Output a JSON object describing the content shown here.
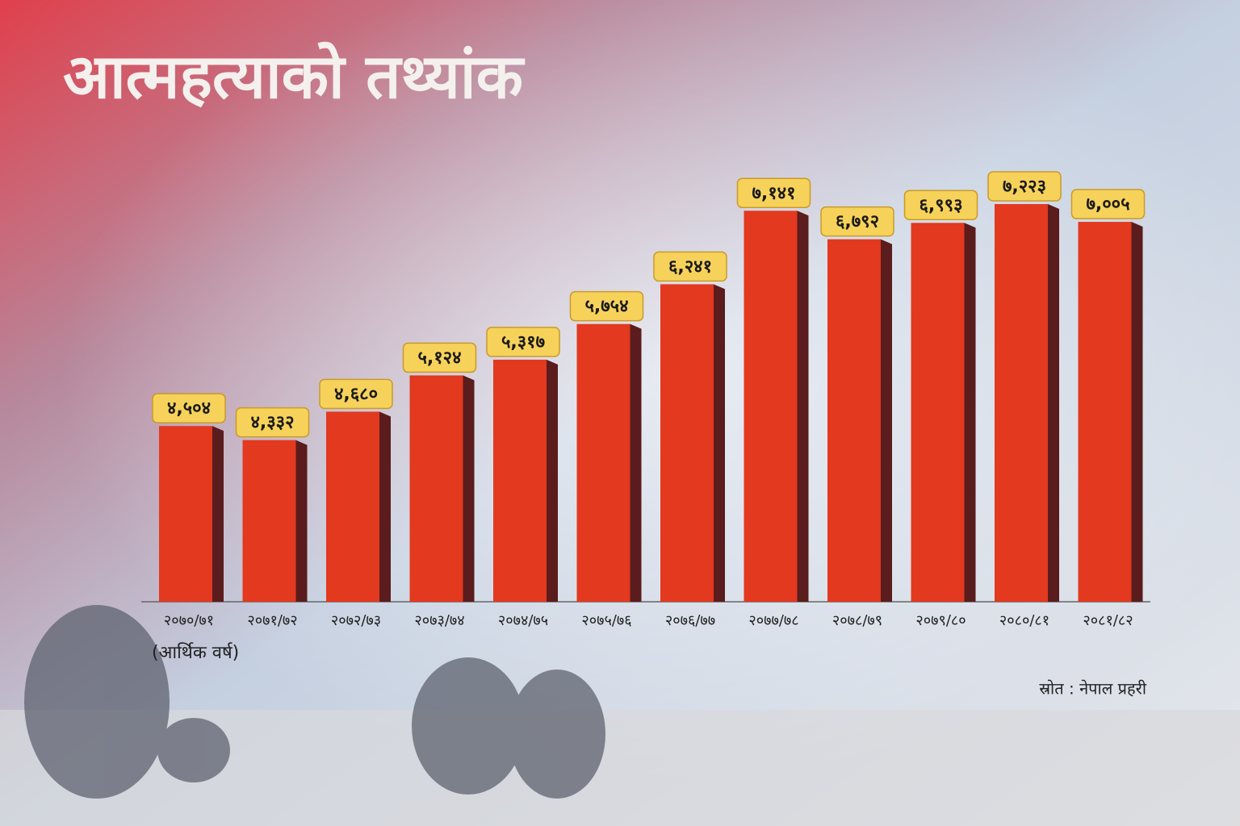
{
  "chart_data": {
    "type": "bar",
    "title": "आत्महत्याको तथ्यांक",
    "x_label": "(आर्थिक वर्ष)",
    "source": "स्रोत : नेपाल प्रहरी",
    "categories": [
      "२०७०/७१",
      "२०७१/७२",
      "२०७२/७३",
      "२०७३/७४",
      "२०७४/७५",
      "२०७५/७६",
      "२०७६/७७",
      "२०७७/७८",
      "२०७८/७९",
      "२०७९/८०",
      "२०८०/८१",
      "२०८१/८२"
    ],
    "values": [
      4504,
      4332,
      4680,
      5124,
      5317,
      5754,
      6241,
      7141,
      6792,
      6993,
      7223,
      7005
    ],
    "value_labels": [
      "४,५०४",
      "४,३३२",
      "४,६८०",
      "५,१२४",
      "५,३१७",
      "५,७५४",
      "६,२४१",
      "७,१४१",
      "६,७९२",
      "६,९९३",
      "७,२२३",
      "७,००५"
    ],
    "color": "#e2391f"
  }
}
